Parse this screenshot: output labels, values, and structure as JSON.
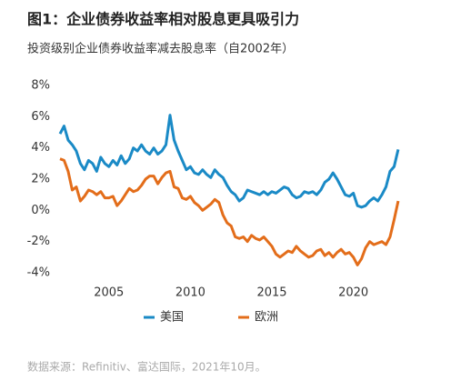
{
  "chart_data": {
    "type": "line",
    "title": "图1：企业债券收益率相对股息更具吸引力",
    "subtitle": "投资级别企业债券收益率减去股息率（自2002年）",
    "source": "数据来源：Refinitiv、富达国际，2021年10月。",
    "x": [
      2002,
      2002.25,
      2002.5,
      2002.75,
      2003,
      2003.25,
      2003.5,
      2003.75,
      2004,
      2004.25,
      2004.5,
      2004.75,
      2005,
      2005.25,
      2005.5,
      2005.75,
      2006,
      2006.25,
      2006.5,
      2006.75,
      2007,
      2007.25,
      2007.5,
      2007.75,
      2008,
      2008.25,
      2008.5,
      2008.75,
      2009,
      2009.25,
      2009.5,
      2009.75,
      2010,
      2010.25,
      2010.5,
      2010.75,
      2011,
      2011.25,
      2011.5,
      2011.75,
      2012,
      2012.25,
      2012.5,
      2012.75,
      2013,
      2013.25,
      2013.5,
      2013.75,
      2014,
      2014.25,
      2014.5,
      2014.75,
      2015,
      2015.25,
      2015.5,
      2015.75,
      2016,
      2016.25,
      2016.5,
      2016.75,
      2017,
      2017.25,
      2017.5,
      2017.75,
      2018,
      2018.25,
      2018.5,
      2018.75,
      2019,
      2019.25,
      2019.5,
      2019.75,
      2020,
      2020.25,
      2020.5,
      2020.75,
      2021,
      2021.25,
      2021.5,
      2021.75,
      2022,
      2022.25,
      2022.5,
      2022.75
    ],
    "series": [
      {
        "name": "美国",
        "color": "#1a8ac6",
        "values": [
          4.9,
          5.4,
          4.5,
          4.2,
          3.8,
          3.0,
          2.6,
          3.2,
          3.0,
          2.5,
          3.4,
          3.0,
          2.8,
          3.2,
          2.9,
          3.5,
          3.0,
          3.3,
          4.0,
          3.8,
          4.2,
          3.8,
          3.6,
          4.0,
          3.6,
          3.8,
          4.2,
          6.1,
          4.5,
          3.8,
          3.2,
          2.6,
          2.8,
          2.4,
          2.3,
          2.6,
          2.3,
          2.1,
          2.6,
          2.3,
          2.1,
          1.6,
          1.2,
          1.0,
          0.6,
          0.8,
          1.3,
          1.2,
          1.1,
          1.0,
          1.2,
          1.0,
          1.2,
          1.1,
          1.3,
          1.5,
          1.4,
          1.0,
          0.8,
          0.9,
          1.2,
          1.1,
          1.2,
          1.0,
          1.3,
          1.8,
          2.0,
          2.4,
          2.0,
          1.5,
          1.0,
          0.9,
          1.1,
          0.3,
          0.2,
          0.3,
          0.6,
          0.8,
          0.6,
          1.0,
          1.5,
          2.5,
          2.8,
          3.9
        ]
      },
      {
        "name": "欧洲",
        "color": "#e36d1a",
        "values": [
          3.3,
          3.2,
          2.5,
          1.3,
          1.5,
          0.6,
          0.9,
          1.3,
          1.2,
          1.0,
          1.2,
          0.8,
          0.8,
          0.9,
          0.3,
          0.6,
          1.0,
          1.4,
          1.2,
          1.3,
          1.6,
          2.0,
          2.2,
          2.2,
          1.7,
          2.1,
          2.4,
          2.5,
          1.5,
          1.4,
          0.8,
          0.7,
          0.9,
          0.5,
          0.3,
          0.0,
          0.2,
          0.4,
          0.7,
          0.5,
          -0.3,
          -0.8,
          -1.0,
          -1.7,
          -1.8,
          -1.7,
          -2.0,
          -1.6,
          -1.8,
          -1.9,
          -1.7,
          -2.0,
          -2.3,
          -2.8,
          -3.0,
          -2.8,
          -2.6,
          -2.7,
          -2.3,
          -2.6,
          -2.8,
          -3.0,
          -2.9,
          -2.6,
          -2.5,
          -2.9,
          -2.7,
          -3.0,
          -2.7,
          -2.5,
          -2.8,
          -2.7,
          -3.0,
          -3.5,
          -3.1,
          -2.4,
          -2.0,
          -2.2,
          -2.1,
          -2.0,
          -2.2,
          -1.7,
          -0.6,
          0.6
        ]
      }
    ],
    "xlim": [
      2002,
      2023.2
    ],
    "xticks": [
      2005,
      2010,
      2015,
      2020
    ],
    "ylim": [
      -4,
      8
    ],
    "yticks": [
      {
        "value": -4,
        "label": "-4%"
      },
      {
        "value": -2,
        "label": "-2%"
      },
      {
        "value": 0,
        "label": "0%"
      },
      {
        "value": 2,
        "label": "2%"
      },
      {
        "value": 4,
        "label": "4%"
      },
      {
        "value": 6,
        "label": "6%"
      },
      {
        "value": 8,
        "label": "8%"
      }
    ]
  }
}
